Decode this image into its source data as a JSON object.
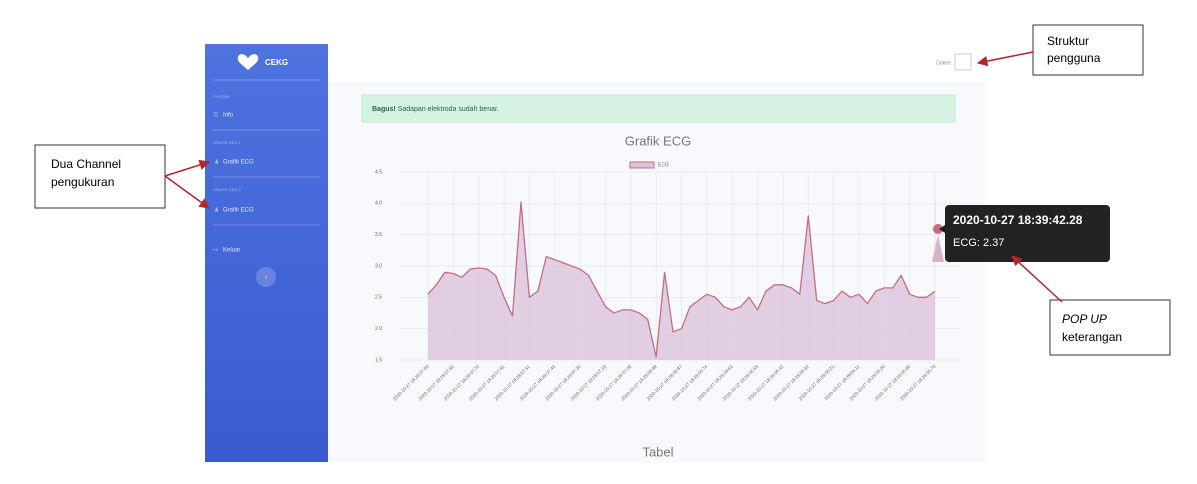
{
  "sidebar": {
    "brand": "CEKG",
    "sections": [
      {
        "heading": "SYSTEM",
        "item": "Info"
      },
      {
        "heading": "GRAFIK EKG 1",
        "item": "Grafik ECG"
      },
      {
        "heading": "GRAFIK EKG 2",
        "item": "Grafik ECG"
      }
    ],
    "logout": "Keluar"
  },
  "topbar": {
    "user": "Dokter"
  },
  "alert": {
    "strong": "Bagus!",
    "text": "Sadapan elektroda sudah benar."
  },
  "chart_data": {
    "type": "line",
    "title": "Grafik ECG",
    "categories": [
      "2020-10-27 18:29:07.93",
      null,
      null,
      "2020-10-27 18:29:07.82",
      null,
      null,
      "2020-10-27 18:29:07.72",
      null,
      null,
      "2020-10-27 18:29:07.61",
      null,
      null,
      "2020-10-27 18:29:07.51",
      null,
      null,
      "2020-10-27 18:29:07.40",
      null,
      null,
      "2020-10-27 18:29:07.30",
      null,
      null,
      "2020-10-27 18:29:07.19",
      null,
      null,
      "2020-10-27 18:29:07.09",
      null,
      null,
      "2020-10-27 18:29:06.98",
      null,
      null,
      "2020-10-27 18:29:06.87",
      null,
      null,
      "2020-10-27 18:29:06.74",
      null,
      null,
      "2020-10-27 18:29:06.63",
      null,
      null,
      "2020-10-27 18:29:06.53",
      null,
      null,
      "2020-10-27 18:29:06.42",
      null,
      null,
      "2020-10-27 18:29:06.32",
      null,
      null,
      "2020-10-27 18:29:06.21",
      null,
      null,
      "2020-10-27 18:29:06.11",
      null,
      null,
      "2020-10-27 18:29:06.00",
      null,
      null,
      "2020-10-27 18:29:05.90",
      null,
      null,
      "2020-10-27 18:29:05.79"
    ],
    "series": [
      {
        "name": "ECG",
        "color": "#c66b84",
        "fill": "#dcc3dc",
        "values": [
          2.55,
          2.7,
          2.9,
          2.88,
          2.82,
          2.95,
          2.97,
          2.95,
          2.85,
          2.5,
          2.2,
          4.02,
          2.5,
          2.6,
          3.15,
          3.1,
          3.05,
          3.0,
          2.95,
          2.85,
          2.6,
          2.35,
          2.25,
          2.3,
          2.3,
          2.25,
          2.15,
          1.55,
          2.9,
          1.95,
          2.0,
          2.35,
          2.45,
          2.55,
          2.5,
          2.35,
          2.3,
          2.35,
          2.5,
          2.3,
          2.6,
          2.7,
          2.7,
          2.65,
          2.55,
          3.8,
          2.45,
          2.4,
          2.45,
          2.6,
          2.5,
          2.55,
          2.4,
          2.6,
          2.65,
          2.65,
          2.85,
          2.55,
          2.5,
          2.5,
          2.6
        ]
      }
    ],
    "ylim": [
      1.5,
      4.5
    ],
    "yticks": [
      1.5,
      {
        "value": 2,
        "label": "2.0"
      },
      2.5,
      {
        "value": 3,
        "label": "3.0"
      },
      3.5,
      {
        "value": 4,
        "label": "4.0"
      },
      4.5
    ],
    "grid": true,
    "legend": "top",
    "tooltip": {
      "title": "2020-10-27 18:39:42.28",
      "body": "ECG: 2.37"
    }
  },
  "section_title": "Tabel",
  "annotations": [
    {
      "lines": [
        "Struktur",
        "pengguna"
      ]
    },
    {
      "lines": [
        "Dua Channel",
        "pengukuran"
      ]
    },
    {
      "lines": [
        "POP UP",
        "keterangan"
      ]
    }
  ]
}
